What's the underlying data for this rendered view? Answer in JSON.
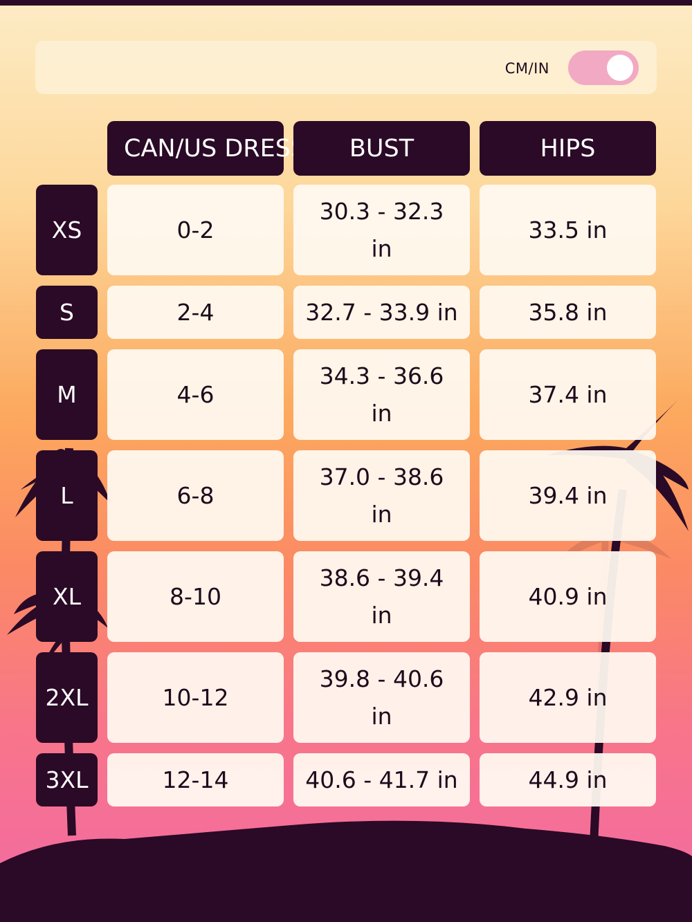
{
  "unit_toggle": {
    "label": "CM/IN",
    "state": "on"
  },
  "table": {
    "headers": [
      "CAN/US DRESS",
      "BUST",
      "HIPS"
    ],
    "rows": [
      {
        "size": "XS",
        "dress": "0-2",
        "bust": "30.3 - 32.3 in",
        "hips": "33.5 in"
      },
      {
        "size": "S",
        "dress": "2-4",
        "bust": "32.7 - 33.9 in",
        "hips": "35.8 in"
      },
      {
        "size": "M",
        "dress": "4-6",
        "bust": "34.3 - 36.6 in",
        "hips": "37.4 in"
      },
      {
        "size": "L",
        "dress": "6-8",
        "bust": "37.0 - 38.6 in",
        "hips": "39.4 in"
      },
      {
        "size": "XL",
        "dress": "8-10",
        "bust": "38.6 - 39.4 in",
        "hips": "40.9 in"
      },
      {
        "size": "2XL",
        "dress": "10-12",
        "bust": "39.8 - 40.6 in",
        "hips": "42.9 in"
      },
      {
        "size": "3XL",
        "dress": "12-14",
        "bust": "40.6 - 41.7 in",
        "hips": "44.9 in"
      }
    ]
  },
  "colors": {
    "header_bg": "#2a0a26",
    "cell_bg": "#fff9f0",
    "toggle": "#f2a9c4",
    "gradient_top": "#fdebc4",
    "gradient_bottom": "#f26aa3"
  }
}
